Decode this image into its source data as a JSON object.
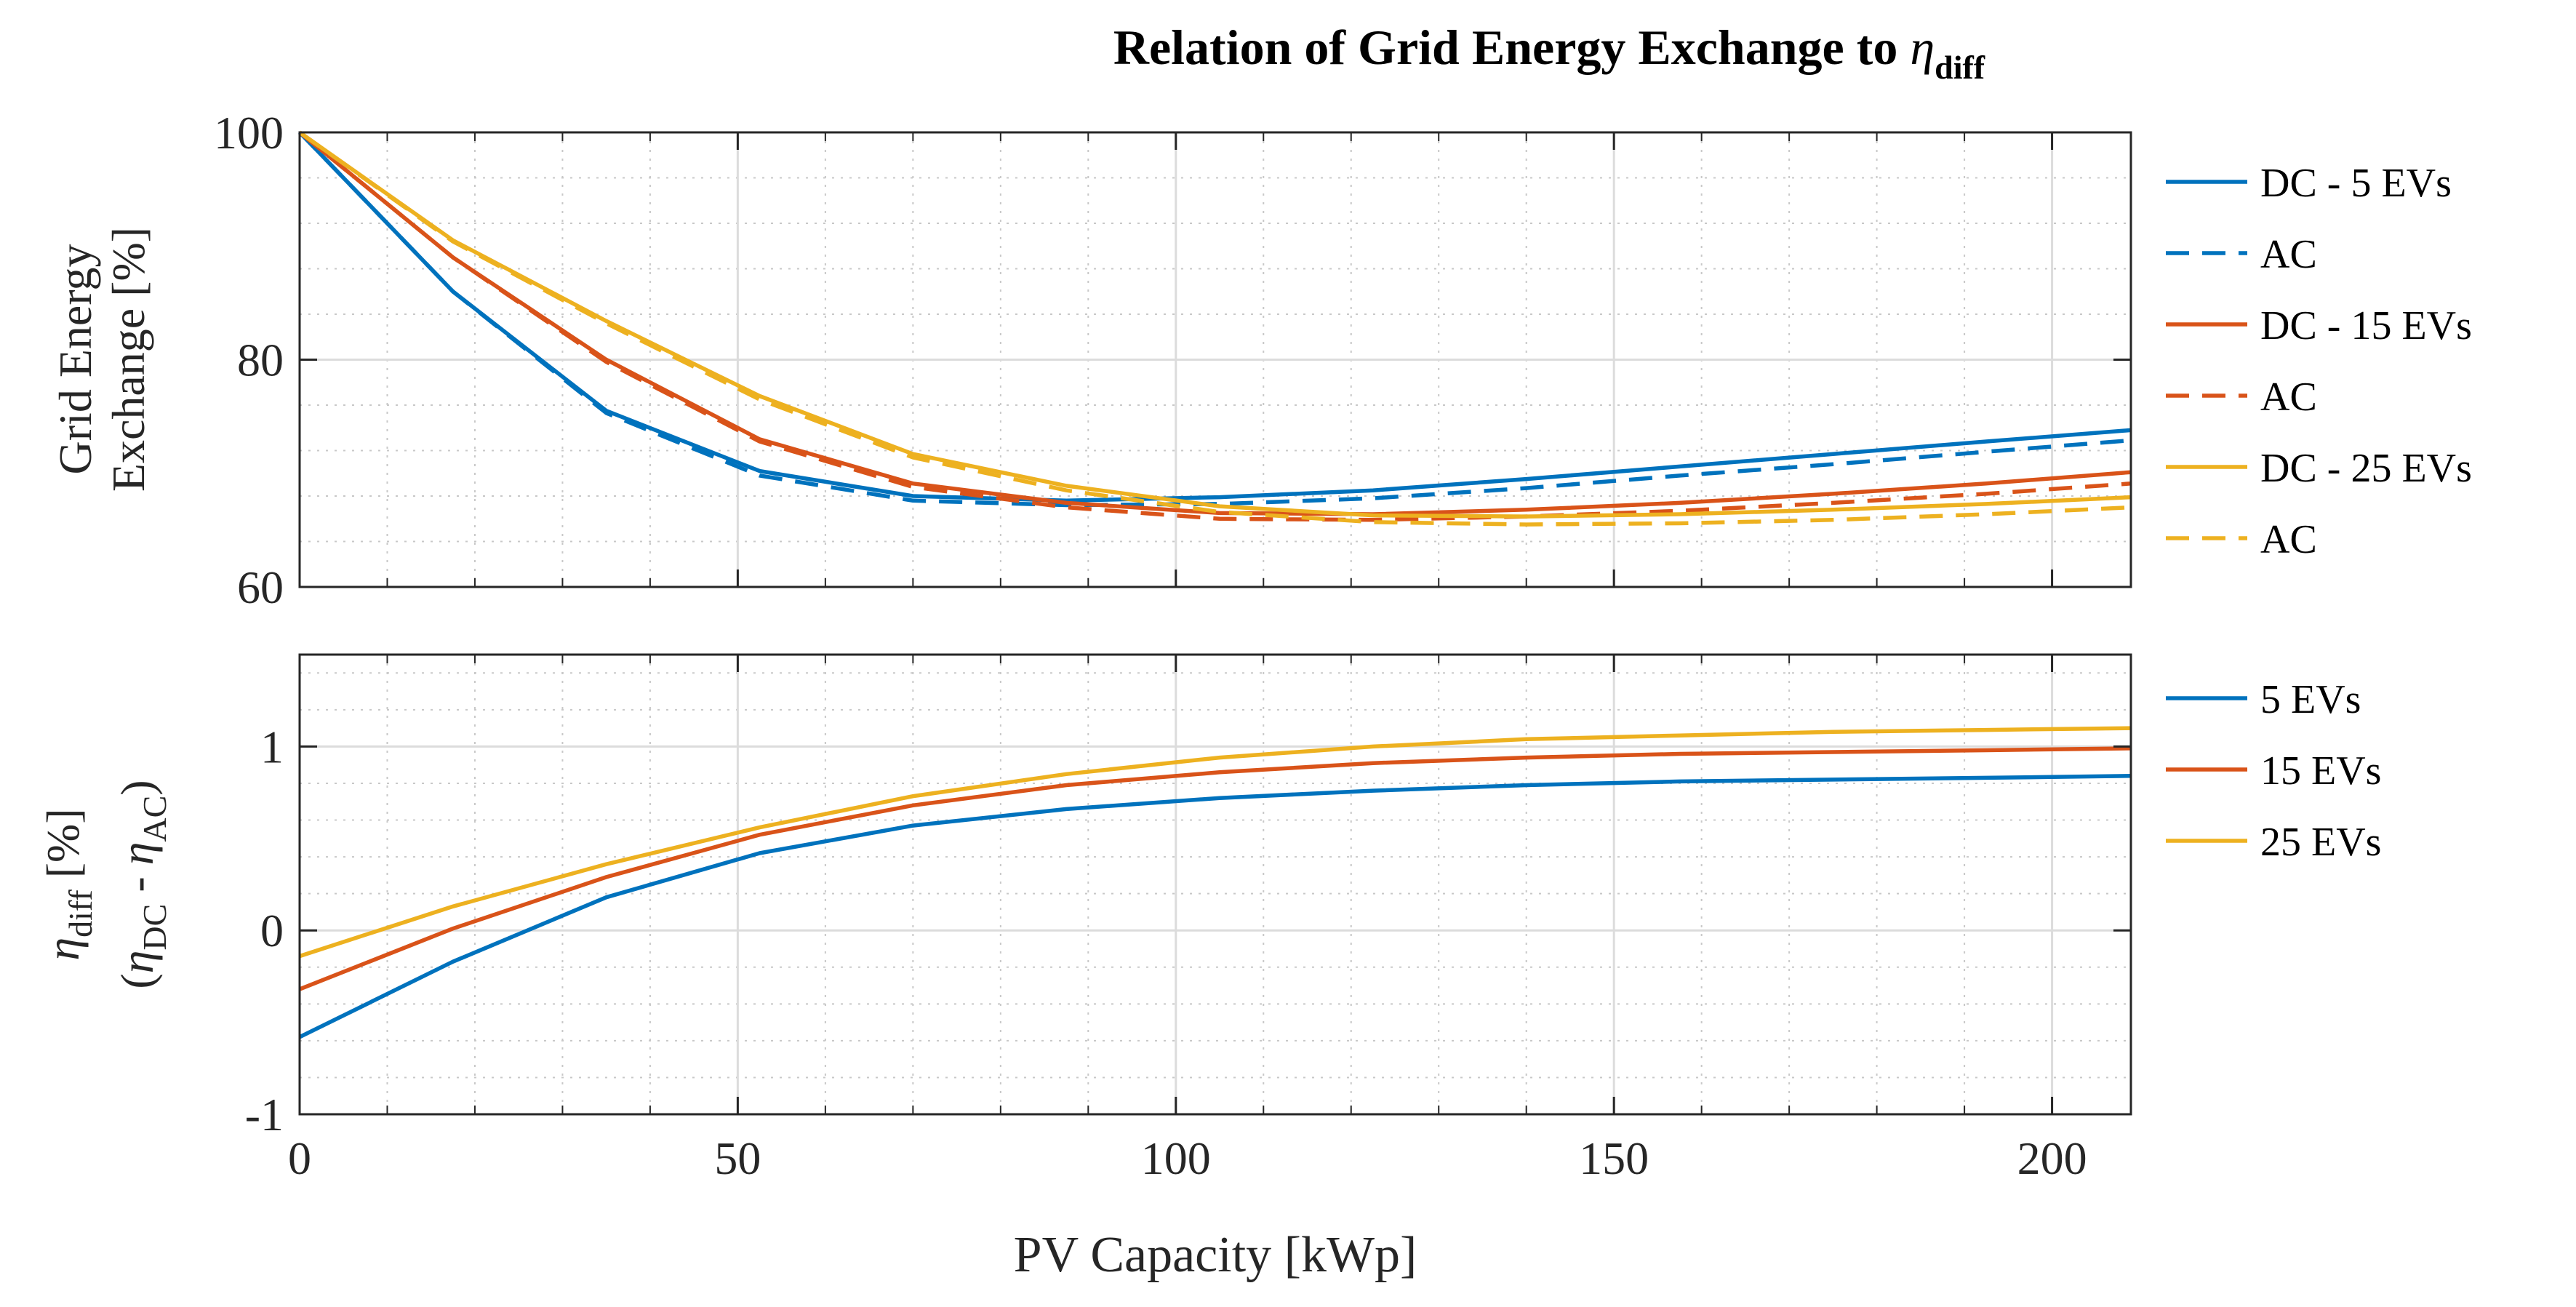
{
  "colors": {
    "blue": "#0072BD",
    "red": "#D95319",
    "yellow": "#EDB120"
  },
  "chart_data": [
    {
      "type": "line",
      "title": "Relation of Grid Energy Exchange to ",
      "title_symbol": "η",
      "title_sub": "diff",
      "xlabel": "",
      "ylabel_lines": [
        "Grid Energy",
        "Exchange [%]"
      ],
      "xlim": [
        0,
        209
      ],
      "ylim": [
        60,
        100
      ],
      "xticks": [
        0,
        50,
        100,
        150,
        200
      ],
      "yticks": [
        60,
        80,
        100
      ],
      "ytick_labels": [
        "60",
        "80",
        "100"
      ],
      "grid": true,
      "minor_grid": true,
      "legend_position": "outside-right",
      "series": [
        {
          "name": "DC - 5 EVs",
          "color": "blue",
          "dash": false,
          "x": [
            0,
            17.5,
            35,
            52.5,
            70,
            87.5,
            105,
            122.5,
            140,
            157.5,
            175,
            192.5,
            209
          ],
          "y": [
            100,
            86,
            75.5,
            70.2,
            68,
            67.6,
            67.9,
            68.5,
            69.5,
            70.6,
            71.7,
            72.8,
            73.8
          ]
        },
        {
          "name": "AC",
          "color": "blue",
          "dash": true,
          "x": [
            0,
            17.5,
            35,
            52.5,
            70,
            87.5,
            105,
            122.5,
            140,
            157.5,
            175,
            192.5,
            209
          ],
          "y": [
            100,
            86,
            75.3,
            69.8,
            67.6,
            67.2,
            67.3,
            67.8,
            68.7,
            69.8,
            70.8,
            71.9,
            72.9
          ]
        },
        {
          "name": "DC - 15 EVs",
          "color": "red",
          "dash": false,
          "x": [
            0,
            17.5,
            35,
            52.5,
            70,
            87.5,
            105,
            122.5,
            140,
            157.5,
            175,
            192.5,
            209
          ],
          "y": [
            100,
            89,
            80,
            73,
            69.1,
            67.4,
            66.5,
            66.4,
            66.8,
            67.4,
            68.2,
            69.1,
            70.1
          ]
        },
        {
          "name": "AC",
          "color": "red",
          "dash": true,
          "x": [
            0,
            17.5,
            35,
            52.5,
            70,
            87.5,
            105,
            122.5,
            140,
            157.5,
            175,
            192.5,
            209
          ],
          "y": [
            100,
            89,
            79.8,
            72.8,
            68.8,
            67,
            66,
            65.9,
            66.2,
            66.7,
            67.4,
            68.2,
            69.1
          ]
        },
        {
          "name": "DC - 25 EVs",
          "color": "yellow",
          "dash": false,
          "x": [
            0,
            17.5,
            35,
            52.5,
            70,
            87.5,
            105,
            122.5,
            140,
            157.5,
            175,
            192.5,
            209
          ],
          "y": [
            100,
            90.5,
            83.4,
            76.8,
            71.7,
            68.9,
            67.1,
            66.3,
            66.2,
            66.4,
            66.8,
            67.3,
            67.9
          ]
        },
        {
          "name": "AC",
          "color": "yellow",
          "dash": true,
          "x": [
            0,
            17.5,
            35,
            52.5,
            70,
            87.5,
            105,
            122.5,
            140,
            157.5,
            175,
            192.5,
            209
          ],
          "y": [
            100,
            90.4,
            83.2,
            76.5,
            71.4,
            68.5,
            66.6,
            65.7,
            65.5,
            65.6,
            65.9,
            66.4,
            67
          ]
        }
      ]
    },
    {
      "type": "line",
      "xlabel": "PV Capacity [kWp]",
      "ylabel_line1_symbol": "η",
      "ylabel_line1_sub": "diff",
      "ylabel_line1_text": " [%]",
      "ylabel_line2": {
        "open": "(",
        "sym1": "η",
        "sub1": "DC",
        "minus": " - ",
        "sym2": "η",
        "sub2": "AC",
        "close": ")"
      },
      "xlim": [
        0,
        209
      ],
      "ylim": [
        -1,
        1.5
      ],
      "xticks": [
        0,
        50,
        100,
        150,
        200
      ],
      "xtick_labels": [
        "0",
        "50",
        "100",
        "150",
        "200"
      ],
      "yticks": [
        -1,
        0,
        1
      ],
      "ytick_labels": [
        "-1",
        "0",
        "1"
      ],
      "grid": true,
      "minor_grid": true,
      "legend_position": "outside-right",
      "series": [
        {
          "name": "5 EVs",
          "color": "blue",
          "x": [
            0,
            17.5,
            35,
            52.5,
            70,
            87.5,
            105,
            122.5,
            140,
            157.5,
            175,
            192.5,
            209
          ],
          "y": [
            -0.58,
            -0.17,
            0.18,
            0.42,
            0.57,
            0.66,
            0.72,
            0.76,
            0.79,
            0.81,
            0.82,
            0.83,
            0.84
          ]
        },
        {
          "name": "15 EVs",
          "color": "red",
          "x": [
            0,
            17.5,
            35,
            52.5,
            70,
            87.5,
            105,
            122.5,
            140,
            157.5,
            175,
            192.5,
            209
          ],
          "y": [
            -0.32,
            0.01,
            0.29,
            0.52,
            0.68,
            0.79,
            0.86,
            0.91,
            0.94,
            0.96,
            0.97,
            0.98,
            0.99
          ]
        },
        {
          "name": "25 EVs",
          "color": "yellow",
          "x": [
            0,
            17.5,
            35,
            52.5,
            70,
            87.5,
            105,
            122.5,
            140,
            157.5,
            175,
            192.5,
            209
          ],
          "y": [
            -0.14,
            0.13,
            0.36,
            0.56,
            0.73,
            0.85,
            0.94,
            1.0,
            1.04,
            1.06,
            1.08,
            1.09,
            1.1
          ]
        }
      ]
    }
  ]
}
